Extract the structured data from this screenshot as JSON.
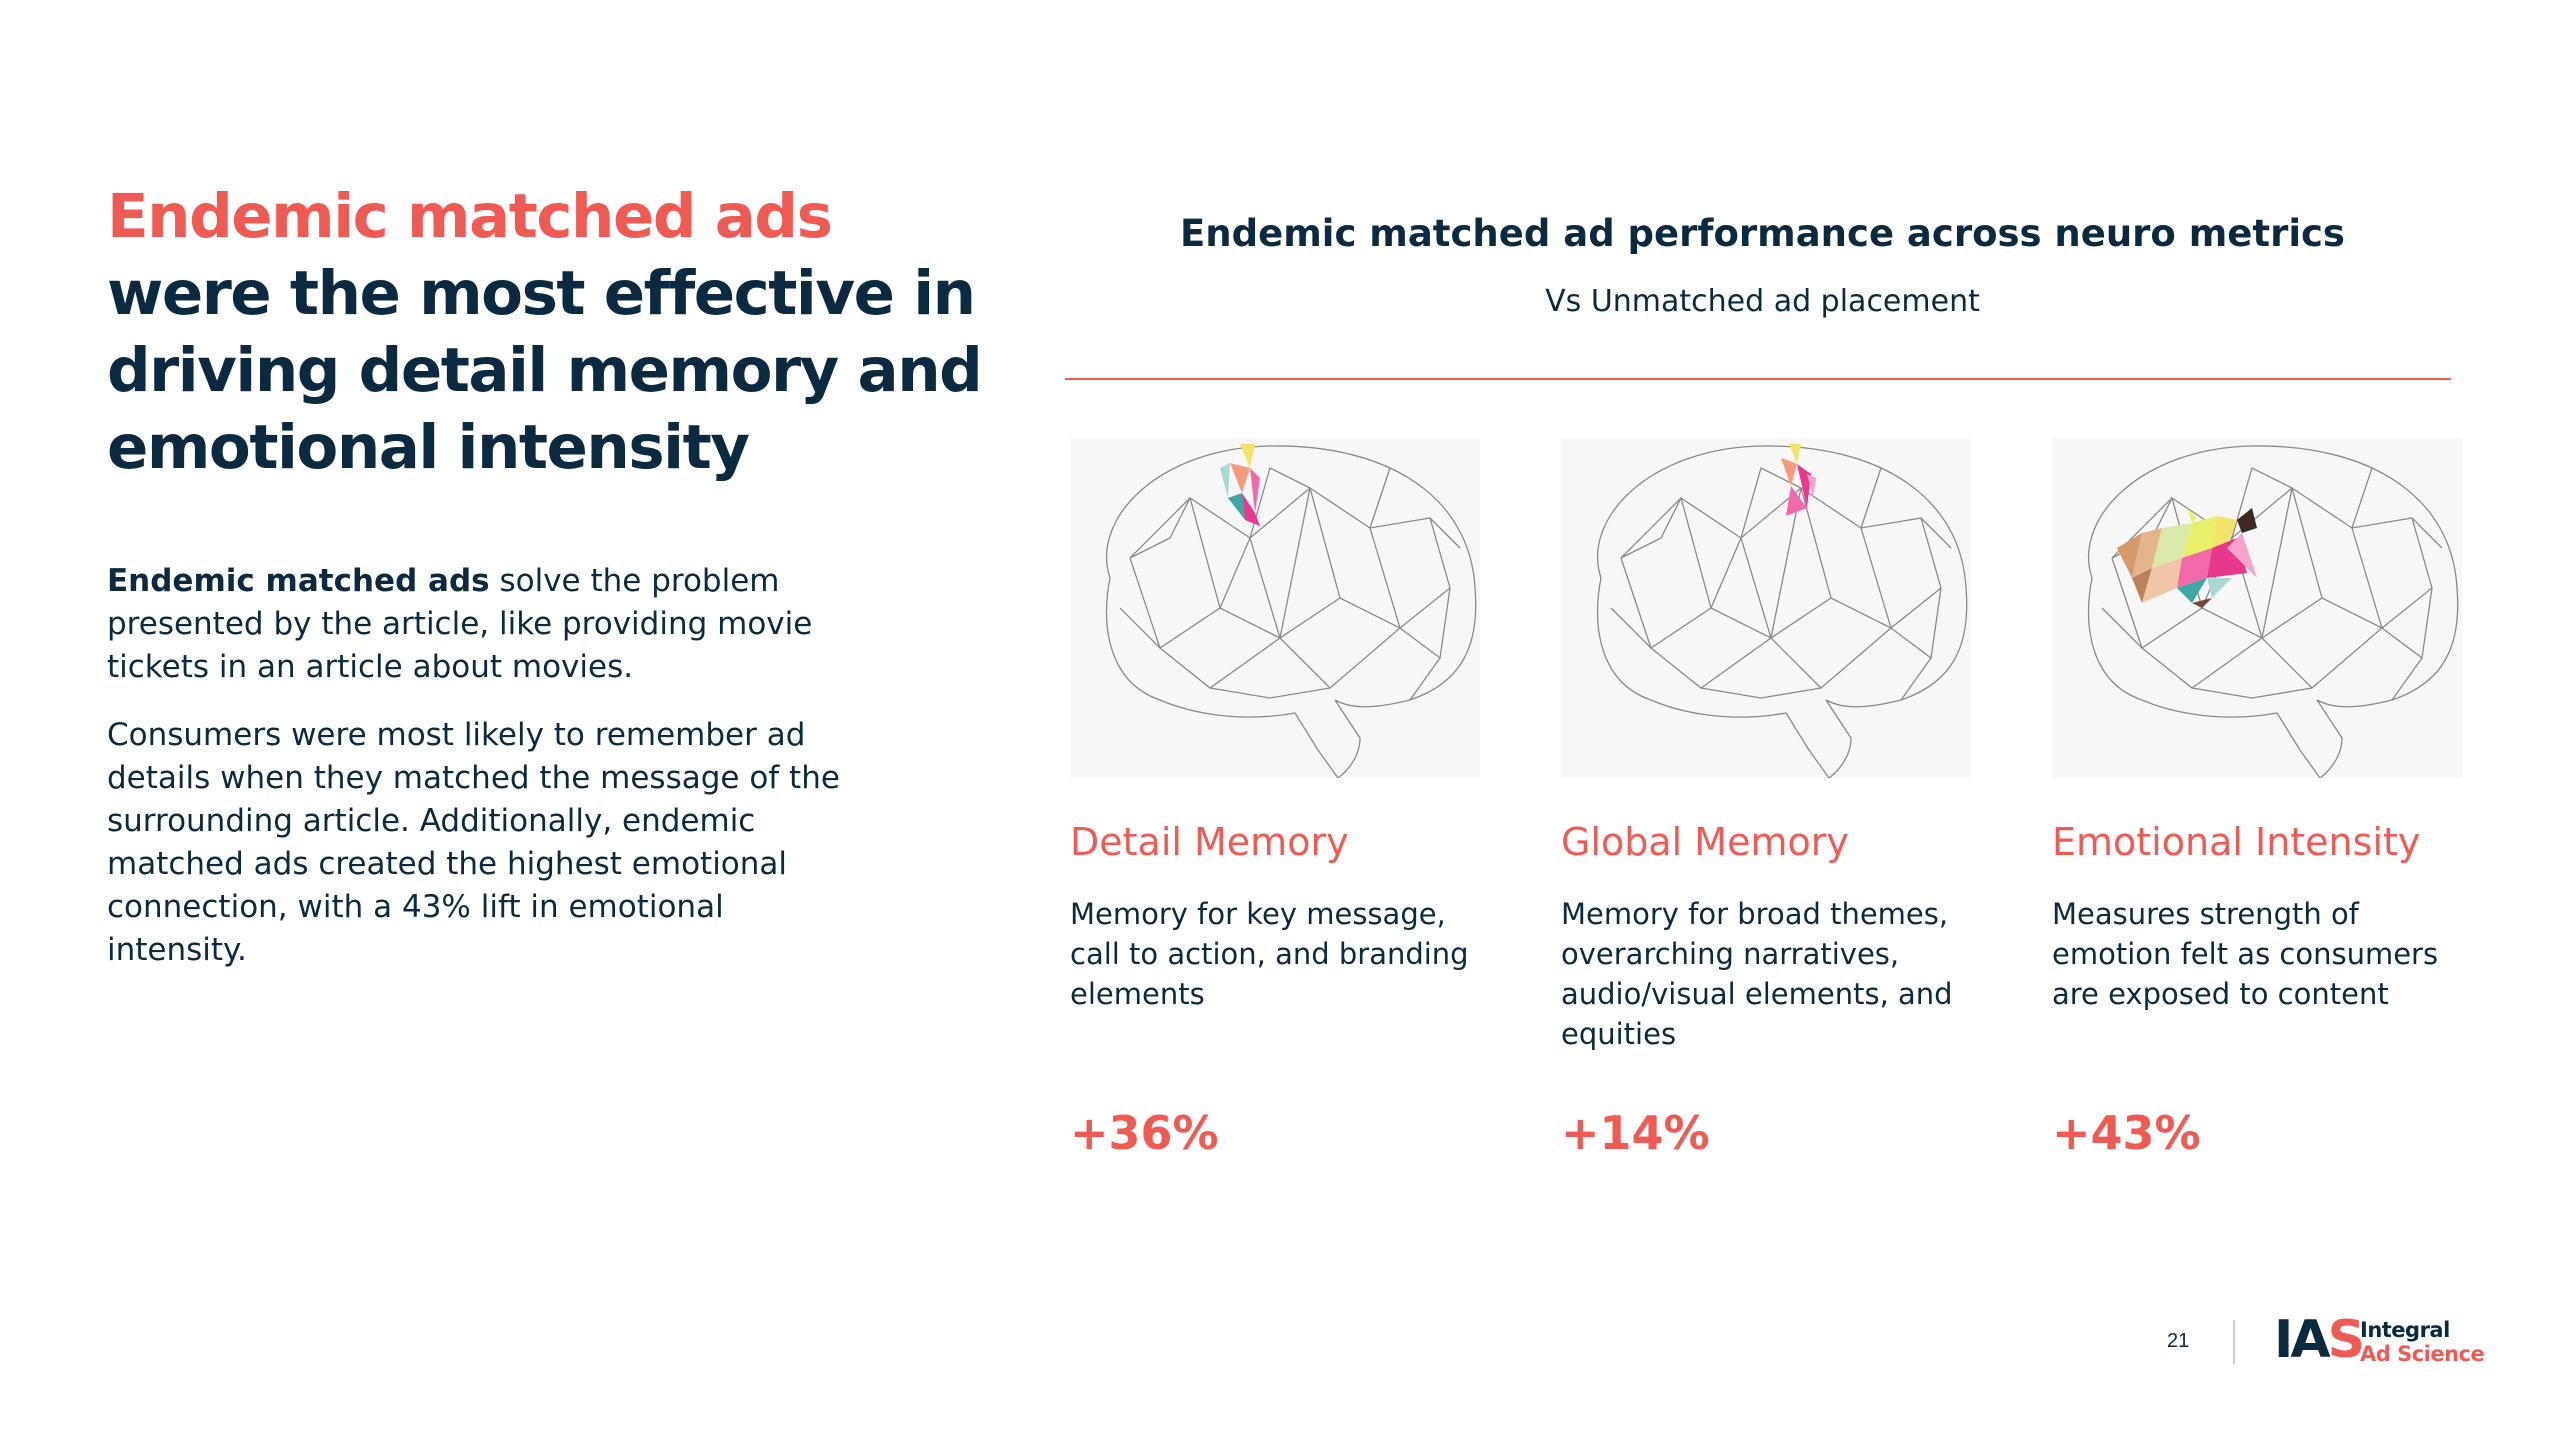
{
  "headline": {
    "accent": "Endemic matched ads",
    "rest": "were the most effective in driving detail memory and emotional intensity"
  },
  "intro": {
    "bold": "Endemic matched ads",
    "rest": " solve the problem presented by the article, like providing movie tickets in an article about movies."
  },
  "paragraph2": "Consumers were most likely to remember ad details when they matched the message of the surrounding article. Additionally, endemic matched ads created the highest emotional connection, with a 43% lift in emotional intensity.",
  "chart": {
    "title": "Endemic matched ad performance across neuro metrics",
    "subtitle": "Vs Unmatched ad placement"
  },
  "chart_data": {
    "type": "table",
    "title": "Endemic matched ad performance across neuro metrics",
    "subtitle": "Vs Unmatched ad placement",
    "categories": [
      "Detail Memory",
      "Global Memory",
      "Emotional Intensity"
    ],
    "values": [
      36,
      14,
      43
    ],
    "value_labels": [
      "+36%",
      "+14%",
      "+43%"
    ],
    "unit": "% lift"
  },
  "metrics": [
    {
      "name": "Detail Memory",
      "description": "Memory for key message, call to action, and branding elements",
      "value": "+36%",
      "brain_icon": "brain-frontal-top-icon"
    },
    {
      "name": "Global Memory",
      "description": "Memory for broad themes, overarching narratives, audio/visual elements, and equities",
      "value": "+14%",
      "brain_icon": "brain-frontal-top-icon"
    },
    {
      "name": "Emotional Intensity",
      "description": "Measures strength of emotion felt as consumers are exposed to content",
      "value": "+43%",
      "brain_icon": "brain-central-icon"
    }
  ],
  "footer": {
    "page_number": "21",
    "logo_mark_ia": "IA",
    "logo_mark_s": "S",
    "logo_line1": "Integral",
    "logo_line2": "Ad Science"
  },
  "colors": {
    "accent": "#ef5a52",
    "navy": "#0c2a3f"
  }
}
